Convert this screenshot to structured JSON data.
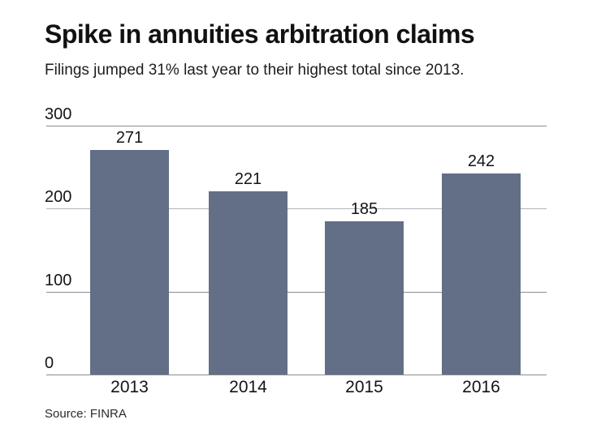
{
  "header": {
    "title": "Spike in annuities arbitration claims",
    "subtitle": "Filings jumped 31% last year to their highest total since 2013."
  },
  "footer": {
    "source": "Source: FINRA"
  },
  "chart_data": {
    "type": "bar",
    "categories": [
      "2013",
      "2014",
      "2015",
      "2016"
    ],
    "values": [
      271,
      221,
      185,
      242
    ],
    "title": "Spike in annuities arbitration claims",
    "subtitle": "Filings jumped 31% last year to their highest total since 2013.",
    "source": "Source: FINRA",
    "xlabel": "",
    "ylabel": "",
    "ylim": [
      0,
      300
    ],
    "yticks": [
      0,
      100,
      200,
      300
    ],
    "grid": true,
    "legend": "none",
    "data_labels": true,
    "bar_color": "#626F86",
    "gridline_color": "#8b8c8e",
    "text_color": "#141414"
  }
}
